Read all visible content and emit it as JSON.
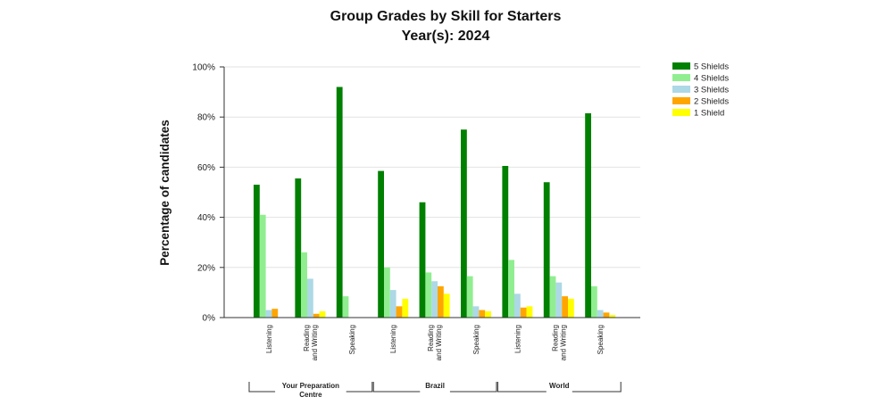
{
  "chart_data": {
    "type": "bar",
    "title": "Group Grades by Skill for Starters",
    "subtitle": "Year(s): 2024",
    "ylabel": "Percentage of candidates",
    "ylim": [
      0,
      100
    ],
    "yticks": [
      0,
      20,
      40,
      60,
      80,
      100
    ],
    "ytick_labels": [
      "0%",
      "20%",
      "40%",
      "60%",
      "80%",
      "100%"
    ],
    "grid": true,
    "legend_position": "top-right",
    "groups": [
      {
        "name": "Your Preparation Centre",
        "name_lines": [
          "Your Preparation",
          "Centre"
        ]
      },
      {
        "name": "Brazil",
        "name_lines": [
          "Brazil"
        ]
      },
      {
        "name": "World",
        "name_lines": [
          "World"
        ]
      }
    ],
    "categories": [
      {
        "group": 0,
        "lines": [
          "Listening"
        ]
      },
      {
        "group": 0,
        "lines": [
          "Reading",
          "and Writing"
        ]
      },
      {
        "group": 0,
        "lines": [
          "Speaking"
        ]
      },
      {
        "group": 1,
        "lines": [
          "Listening"
        ]
      },
      {
        "group": 1,
        "lines": [
          "Reading",
          "and Writing"
        ]
      },
      {
        "group": 1,
        "lines": [
          "Speaking"
        ]
      },
      {
        "group": 2,
        "lines": [
          "Listening"
        ]
      },
      {
        "group": 2,
        "lines": [
          "Reading",
          "and Writing"
        ]
      },
      {
        "group": 2,
        "lines": [
          "Speaking"
        ]
      }
    ],
    "series": [
      {
        "name": "5 Shields",
        "color": "#008000",
        "values": [
          53,
          55.5,
          92,
          58.5,
          46,
          75,
          60.5,
          54,
          81.5
        ]
      },
      {
        "name": "4 Shields",
        "color": "#90EE90",
        "values": [
          41,
          26,
          8.5,
          20,
          18,
          16.5,
          23,
          16.5,
          12.5
        ]
      },
      {
        "name": "3 Shields",
        "color": "#ADD8E6",
        "values": [
          3,
          15.5,
          0,
          11,
          14.5,
          4.5,
          9.5,
          14,
          3
        ]
      },
      {
        "name": "2 Shields",
        "color": "#FFA500",
        "values": [
          3.5,
          1.5,
          0,
          4.5,
          12.5,
          3,
          4,
          8.5,
          2
        ]
      },
      {
        "name": "1 Shield",
        "color": "#FFFF00",
        "values": [
          0,
          2.5,
          0,
          7.5,
          9.5,
          2.5,
          4.5,
          7.5,
          1
        ]
      }
    ]
  }
}
